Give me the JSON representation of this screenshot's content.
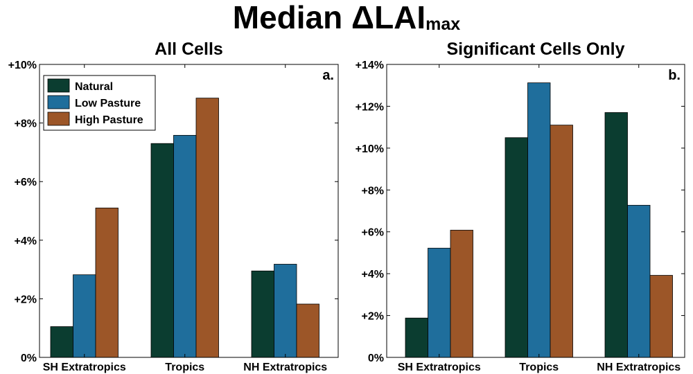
{
  "figure": {
    "title_main": "Median ΔLAI",
    "title_sub": "max"
  },
  "chart_data": [
    {
      "type": "bar",
      "title": "All Cells",
      "panel_label": "a.",
      "categories": [
        "SH Extratropics",
        "Tropics",
        "NH Extratropics"
      ],
      "series": [
        {
          "name": "Natural",
          "color": "#0b3d30",
          "values": [
            1.05,
            7.3,
            2.95
          ]
        },
        {
          "name": "Low Pasture",
          "color": "#1f6e9c",
          "values": [
            2.82,
            7.58,
            3.18
          ]
        },
        {
          "name": "High Pasture",
          "color": "#9c5628",
          "values": [
            5.1,
            8.85,
            1.82
          ]
        }
      ],
      "ylim": [
        0,
        10
      ],
      "yticks": [
        0,
        2,
        4,
        6,
        8,
        10
      ],
      "ytick_labels": [
        "0%",
        "+2%",
        "+4%",
        "+6%",
        "+8%",
        "+10%"
      ],
      "legend": "top-left",
      "xlabel": "",
      "ylabel": ""
    },
    {
      "type": "bar",
      "title": "Significant Cells Only",
      "panel_label": "b.",
      "categories": [
        "SH Extratropics",
        "Tropics",
        "NH Extratropics"
      ],
      "series": [
        {
          "name": "Natural",
          "color": "#0b3d30",
          "values": [
            1.88,
            10.5,
            11.7
          ]
        },
        {
          "name": "Low Pasture",
          "color": "#1f6e9c",
          "values": [
            5.22,
            13.12,
            7.27
          ]
        },
        {
          "name": "High Pasture",
          "color": "#9c5628",
          "values": [
            6.08,
            11.1,
            3.92
          ]
        }
      ],
      "ylim": [
        0,
        14
      ],
      "yticks": [
        0,
        2,
        4,
        6,
        8,
        10,
        12,
        14
      ],
      "ytick_labels": [
        "0%",
        "+2%",
        "+4%",
        "+6%",
        "+8%",
        "+10%",
        "+12%",
        "+14%"
      ],
      "legend": "none",
      "xlabel": "",
      "ylabel": ""
    }
  ]
}
